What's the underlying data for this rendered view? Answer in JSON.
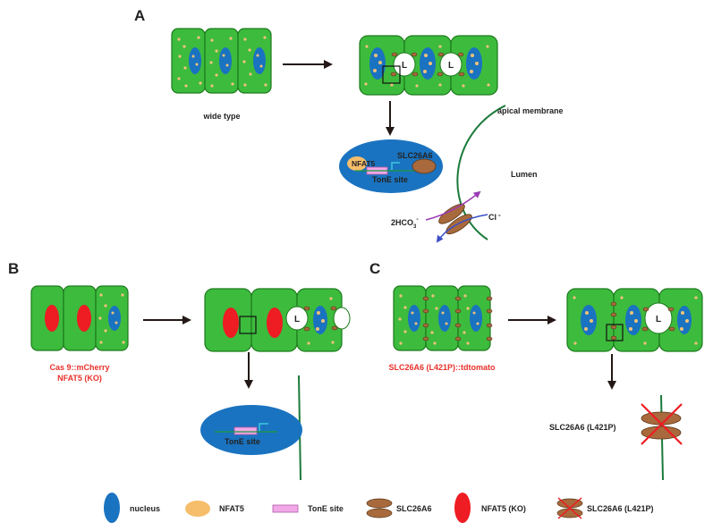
{
  "panels": {
    "a": "A",
    "b": "B",
    "c": "C"
  },
  "panel_a": {
    "caption": "wide type",
    "lumen_marker": "L",
    "apical_membrane": "apical membrane",
    "lumen": "Lumen",
    "nfat5": "NFAT5",
    "slc26a6": "SLC26A6",
    "tone_site": "TonE site",
    "bicarbonate": "2HCO",
    "bicarbonate_sub": "3",
    "bicarbonate_sup": "-",
    "chloride": "Cl",
    "chloride_sup": "-"
  },
  "panel_b": {
    "caption_line1": "Cas 9::mCherry",
    "caption_line2": "NFAT5 (KO)",
    "lumen_marker": "L",
    "tone_site": "TonE site"
  },
  "panel_c": {
    "caption": "SLC26A6 (L421P)::tdtomato",
    "lumen_marker": "L",
    "mutant_label": "SLC26A6 (L421P)"
  },
  "legend": [
    {
      "icon": "nucleus",
      "label": "nucleus",
      "color": "#1a73c0"
    },
    {
      "icon": "nfat5",
      "label": "NFAT5",
      "color": "#f6bd6a"
    },
    {
      "icon": "tone",
      "label": "TonE site",
      "color": "#f0a8e8"
    },
    {
      "icon": "slc",
      "label": "SLC26A6",
      "color": "#a86a3c"
    },
    {
      "icon": "ko",
      "label": "NFAT5 (KO)",
      "color": "#ee1c23"
    },
    {
      "icon": "slcmut",
      "label": "SLC26A6 (L421P)",
      "color": "#a86a3c"
    }
  ],
  "colors": {
    "cell_green": "#3dbb3d",
    "cell_stroke": "#1c7a1c",
    "nucleus_blue": "#1a73c0",
    "granule": "#f2c27a",
    "knockout_red": "#ee1c23",
    "transporter_brown": "#a86a3c",
    "arrow_purple": "#9b3bb4",
    "arrow_blue": "#3a4fc8",
    "label_red": "#e8302b"
  }
}
